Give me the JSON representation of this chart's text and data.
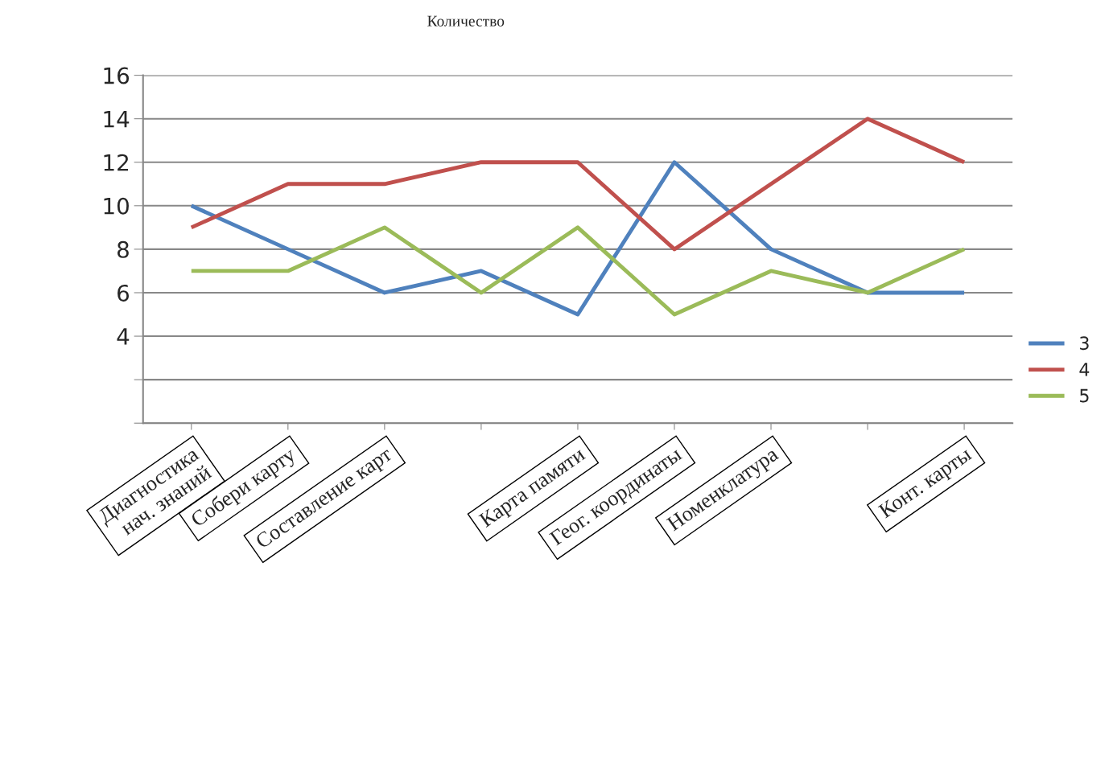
{
  "chart_data": {
    "type": "line",
    "title": "Количество",
    "categories": [
      "Диагностика\nнач. знаний",
      "Собери карту",
      "Составление карт",
      null,
      "Карта памяти",
      "Геог. координаты",
      "Номенклатура",
      null,
      "Конт. карты"
    ],
    "series": [
      {
        "name": "3",
        "color": "#4f81bd",
        "values": [
          10,
          8,
          6,
          7,
          5,
          12,
          8,
          6,
          6
        ]
      },
      {
        "name": "4",
        "color": "#c0504d",
        "values": [
          9,
          11,
          11,
          12,
          12,
          8,
          11,
          14,
          12
        ]
      },
      {
        "name": "5",
        "color": "#9bbb59",
        "values": [
          7,
          7,
          9,
          6,
          9,
          5,
          7,
          6,
          8
        ]
      }
    ],
    "ylim": [
      0,
      16
    ],
    "yticks": [
      {
        "value": 0,
        "label": null
      },
      {
        "value": 2,
        "label": null
      },
      4,
      6,
      8,
      10,
      12,
      14,
      16
    ],
    "grid": "y",
    "legend": "right",
    "marker": "none",
    "line_style": "solid"
  }
}
